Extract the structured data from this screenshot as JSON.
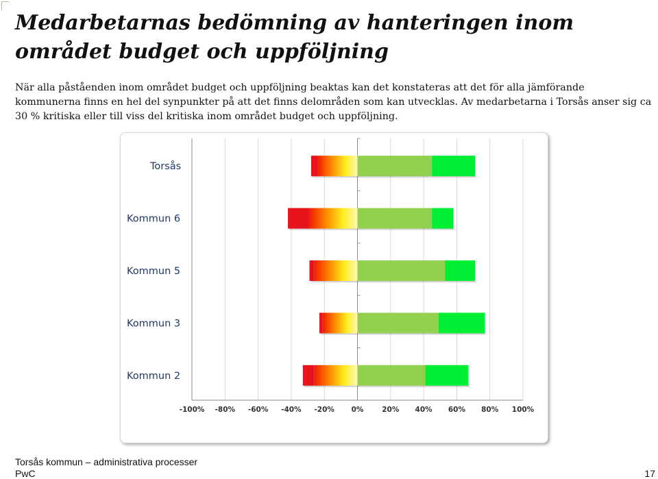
{
  "page": {
    "title": "Medarbetarnas bedömning av hanteringen inom området budget och uppföljning",
    "intro": "När alla påståenden inom området budget och uppföljning beaktas kan det konstateras att det för alla jämförande kommunerna  finns en hel del synpunkter på att det finns delområden som kan utvecklas. Av medarbetarna i Torsås anser  sig ca 30 % kritiska eller till viss del kritiska inom området budget och uppföljning.",
    "footer_org": "Torsås kommun – administrativa processer",
    "footer_brand": "PwC",
    "page_number": "17"
  },
  "chart_data": {
    "type": "bar",
    "orientation": "horizontal",
    "stacked": "diverging",
    "categories": [
      "Torsås",
      "Kommun 6",
      "Kommun 5",
      "Kommun 3",
      "Kommun 2"
    ],
    "x_ticks": [
      "-100%",
      "-80%",
      "-60%",
      "-40%",
      "-20%",
      "0%",
      "20%",
      "40%",
      "60%",
      "80%",
      "100%"
    ],
    "xlim": [
      -100,
      100
    ],
    "grid": true,
    "legend": "none",
    "colors": {
      "strongly_negative": "#e8141b",
      "negative_gradient": [
        "#f01e00",
        "#ff8a00",
        "#ffee20",
        "#fff5b8"
      ],
      "positive": "#92d050",
      "strongly_positive": "#00ee33"
    },
    "series": [
      {
        "color_key": "strongly_negative",
        "values": [
          -4,
          -13,
          -3,
          -2,
          -7
        ]
      },
      {
        "color_key": "negative_gradient",
        "values": [
          -24,
          -29,
          -26,
          -21,
          -26
        ]
      },
      {
        "color_key": "positive",
        "values": [
          45,
          45,
          53,
          49,
          41
        ]
      },
      {
        "color_key": "strongly_positive",
        "values": [
          26,
          13,
          18,
          28,
          26
        ]
      }
    ]
  }
}
